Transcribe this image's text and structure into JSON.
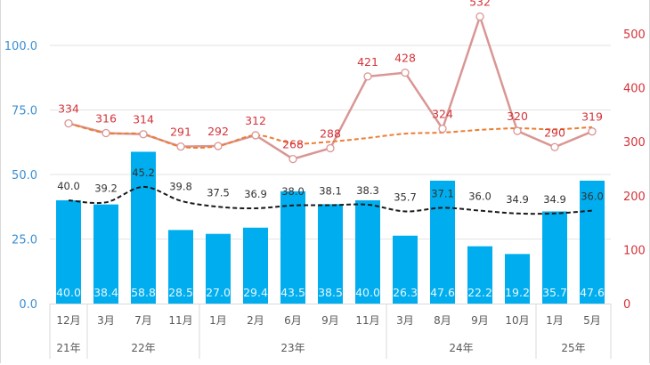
{
  "chart_data": {
    "type": "bar",
    "title": "",
    "categories": [
      "12月",
      "3月",
      "7月",
      "11月",
      "1月",
      "2月",
      "6月",
      "9月",
      "11月",
      "3月",
      "8月",
      "9月",
      "10月",
      "1月",
      "5月"
    ],
    "year_groups": [
      {
        "label": "21年",
        "count": 1
      },
      {
        "label": "22年",
        "count": 3
      },
      {
        "label": "23年",
        "count": 5
      },
      {
        "label": "24年",
        "count": 4
      },
      {
        "label": "25年",
        "count": 2
      }
    ],
    "left_axis": {
      "ylim": [
        0,
        112.5
      ],
      "ticks": [
        "0.0",
        "25.0",
        "50.0",
        "75.0",
        "100.0"
      ],
      "tick_values": [
        0,
        25,
        50,
        75,
        100
      ],
      "color": "#3d8fd1"
    },
    "right_axis": {
      "ylim": [
        0,
        560
      ],
      "ticks": [
        "0",
        "100",
        "200",
        "300",
        "400",
        "500"
      ],
      "tick_values": [
        0,
        100,
        200,
        300,
        400,
        500
      ],
      "color": "#d4333a"
    },
    "series": [
      {
        "name": "bar",
        "type": "bar",
        "axis": "left",
        "color": "#00aeef",
        "values": [
          40.0,
          38.4,
          58.8,
          28.5,
          27.0,
          29.4,
          43.5,
          38.5,
          40.0,
          26.3,
          47.6,
          22.2,
          19.2,
          35.7,
          47.6
        ],
        "labels": [
          "40.0",
          "38.4",
          "58.8",
          "28.5",
          "27.0",
          "29.4",
          "43.5",
          "38.5",
          "40.0",
          "26.3",
          "47.6",
          "22.2",
          "19.2",
          "35.7",
          "47.6"
        ]
      },
      {
        "name": "bar-average",
        "type": "line",
        "style": "dashed",
        "axis": "left",
        "color": "#1a1a1a",
        "values": [
          40.0,
          39.2,
          45.2,
          39.8,
          37.5,
          36.9,
          38.0,
          38.1,
          38.3,
          35.7,
          37.1,
          36.0,
          34.9,
          34.9,
          36.0
        ],
        "labels": [
          "40.0",
          "39.2",
          "45.2",
          "39.8",
          "37.5",
          "36.9",
          "38.0",
          "38.1",
          "38.3",
          "35.7",
          "37.1",
          "36.0",
          "34.9",
          "34.9",
          "36.0"
        ]
      },
      {
        "name": "line",
        "type": "line",
        "axis": "right",
        "color": "#d99694",
        "values": [
          334,
          316,
          314,
          291,
          292,
          312,
          268,
          288,
          421,
          428,
          324,
          532,
          320,
          290,
          319
        ],
        "labels": [
          "334",
          "316",
          "314",
          "291",
          "292",
          "312",
          "268",
          "288",
          "421",
          "428",
          "324",
          "532",
          "320",
          "290",
          "319"
        ]
      },
      {
        "name": "line-average",
        "type": "line",
        "style": "dashed",
        "axis": "right",
        "color": "#ed7d31",
        "values": [
          334,
          316,
          314,
          291,
          292,
          312,
          297,
          300,
          307,
          315,
          317,
          322,
          325,
          323,
          327
        ]
      }
    ],
    "grid": true,
    "legend": "none"
  }
}
